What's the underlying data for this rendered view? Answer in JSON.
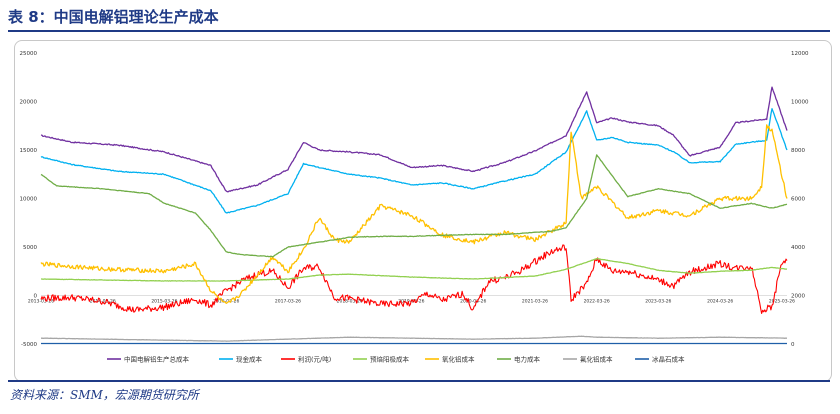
{
  "title": "表 8：中国电解铝理论生产成本",
  "source": "资料来源：SMM，宏源期货研究所",
  "chart_data": {
    "type": "line",
    "x_ticks": [
      "2013-03-26",
      "2014-03-26",
      "2015-03-26",
      "2016-03-26",
      "2017-03-26",
      "2018-03-26",
      "2019-03-26",
      "2020-03-26",
      "2021-03-26",
      "2022-03-26",
      "2023-03-26",
      "2024-03-26",
      "2025-03-26"
    ],
    "xlim": [
      "2013-03-26",
      "2025-04-25"
    ],
    "y_left": {
      "ylim": [
        -5000,
        25000
      ],
      "ticks": [
        "-5000",
        "0",
        "5000",
        "10000",
        "15000",
        "20000",
        "25000"
      ]
    },
    "y_right": {
      "ylim": [
        0,
        12000
      ],
      "ticks": [
        "0",
        "2000",
        "4000",
        "6000",
        "8000",
        "10000",
        "12000"
      ]
    },
    "grid": false,
    "legend_position": "bottom",
    "series": [
      {
        "name": "中国电解铝生产总成本",
        "color": "#7030a0",
        "axis": "left",
        "x": [
          "2013-03-26",
          "2013-09-26",
          "2014-06-26",
          "2015-03-26",
          "2015-12-26",
          "2016-03-26",
          "2016-09-26",
          "2017-03-26",
          "2017-06-26",
          "2017-09-26",
          "2018-03-26",
          "2018-09-26",
          "2019-03-26",
          "2019-09-26",
          "2020-03-26",
          "2020-09-26",
          "2021-03-26",
          "2021-09-26",
          "2022-01-26",
          "2022-03-26",
          "2022-06-26",
          "2022-09-26",
          "2023-03-26",
          "2023-06-26",
          "2023-09-26",
          "2024-03-26",
          "2024-06-26",
          "2024-12-26",
          "2025-01-26",
          "2025-04-25"
        ],
        "y": [
          16500,
          15800,
          15500,
          14800,
          13400,
          10700,
          11400,
          13000,
          15800,
          15000,
          14800,
          14500,
          13200,
          13400,
          12800,
          13700,
          14900,
          16500,
          21000,
          17800,
          18300,
          17900,
          17500,
          16500,
          14400,
          15300,
          17800,
          18200,
          21500,
          17000
        ]
      },
      {
        "name": "现金成本",
        "color": "#00b0f0",
        "axis": "left",
        "x": [
          "2013-03-26",
          "2013-09-26",
          "2014-06-26",
          "2015-03-26",
          "2015-12-26",
          "2016-03-26",
          "2016-09-26",
          "2017-03-26",
          "2017-06-26",
          "2017-09-26",
          "2018-03-26",
          "2018-09-26",
          "2019-03-26",
          "2019-09-26",
          "2020-03-26",
          "2020-09-26",
          "2021-03-26",
          "2021-09-26",
          "2022-01-26",
          "2022-03-26",
          "2022-06-26",
          "2022-09-26",
          "2023-03-26",
          "2023-06-26",
          "2023-09-26",
          "2024-03-26",
          "2024-06-26",
          "2024-12-26",
          "2025-01-26",
          "2025-04-25"
        ],
        "y": [
          14300,
          13500,
          12800,
          12500,
          10800,
          8500,
          9300,
          10500,
          13600,
          13200,
          12500,
          12100,
          11400,
          11600,
          11000,
          11800,
          12500,
          14800,
          19000,
          16000,
          16300,
          15800,
          15500,
          14800,
          13700,
          13800,
          15600,
          16000,
          19300,
          15000
        ]
      },
      {
        "name": "利润(元/吨)",
        "color": "#ff0000",
        "axis": "left",
        "x": [
          "2013-03-26",
          "2013-09-26",
          "2014-03-26",
          "2014-09-26",
          "2015-03-26",
          "2015-09-26",
          "2015-12-26",
          "2016-03-26",
          "2016-06-26",
          "2016-09-26",
          "2016-12-26",
          "2017-03-26",
          "2017-06-26",
          "2017-09-26",
          "2017-12-26",
          "2018-03-26",
          "2018-09-26",
          "2019-03-26",
          "2019-06-26",
          "2019-09-26",
          "2020-01-26",
          "2020-03-26",
          "2020-06-26",
          "2020-09-26",
          "2020-12-26",
          "2021-03-26",
          "2021-06-26",
          "2021-09-26",
          "2021-10-26",
          "2021-11-26",
          "2022-01-26",
          "2022-03-26",
          "2022-06-26",
          "2022-09-26",
          "2023-03-26",
          "2023-06-26",
          "2023-09-26",
          "2024-03-26",
          "2024-06-26",
          "2024-09-26",
          "2024-11-26",
          "2025-01-26",
          "2025-03-26",
          "2025-04-25"
        ],
        "y": [
          -300,
          -200,
          -600,
          -1500,
          -1200,
          -400,
          -1000,
          500,
          1500,
          2200,
          2500,
          800,
          2800,
          3000,
          -200,
          -300,
          -900,
          -800,
          200,
          -500,
          200,
          -1500,
          1500,
          1800,
          2500,
          3500,
          4500,
          5000,
          -500,
          200,
          1200,
          3800,
          2500,
          2500,
          1600,
          1000,
          2400,
          3300,
          2800,
          3000,
          -1500,
          -1200,
          3500,
          3600
        ]
      },
      {
        "name": "预焙阳极成本",
        "color": "#92d050",
        "axis": "left",
        "x": [
          "2013-03-26",
          "2014-03-26",
          "2015-03-26",
          "2016-03-26",
          "2017-03-26",
          "2017-09-26",
          "2018-03-26",
          "2019-03-26",
          "2020-03-26",
          "2021-03-26",
          "2021-09-26",
          "2022-03-26",
          "2022-09-26",
          "2023-03-26",
          "2023-09-26",
          "2024-03-26",
          "2024-09-26",
          "2025-01-26",
          "2025-04-25"
        ],
        "y": [
          1700,
          1600,
          1500,
          1500,
          1700,
          2100,
          2200,
          1900,
          1700,
          2000,
          2700,
          3800,
          3300,
          2600,
          2300,
          2500,
          2600,
          2900,
          2700
        ]
      },
      {
        "name": "氧化铝成本",
        "color": "#ffc000",
        "axis": "right",
        "x": [
          "2013-03-26",
          "2014-03-26",
          "2015-03-26",
          "2015-09-26",
          "2015-12-26",
          "2016-03-26",
          "2016-06-26",
          "2016-12-26",
          "2017-03-26",
          "2017-06-26",
          "2017-09-26",
          "2017-12-26",
          "2018-03-26",
          "2018-09-26",
          "2019-03-26",
          "2019-09-26",
          "2020-03-26",
          "2020-09-26",
          "2021-03-26",
          "2021-09-26",
          "2021-10-26",
          "2021-12-26",
          "2022-03-26",
          "2022-09-26",
          "2023-03-26",
          "2023-09-26",
          "2024-03-26",
          "2024-09-26",
          "2024-11-26",
          "2024-12-26",
          "2025-01-26",
          "2025-04-25"
        ],
        "y": [
          3300,
          3100,
          3000,
          3300,
          2200,
          1600,
          2100,
          3600,
          3000,
          3900,
          5200,
          4300,
          4200,
          5700,
          5300,
          4500,
          4200,
          4600,
          4300,
          5000,
          8800,
          6000,
          6500,
          5200,
          5500,
          5300,
          6000,
          6000,
          6500,
          9000,
          8800,
          6000
        ]
      },
      {
        "name": "电力成本",
        "color": "#70ad47",
        "axis": "left",
        "x": [
          "2013-03-26",
          "2013-06-26",
          "2014-03-26",
          "2014-12-26",
          "2015-03-26",
          "2015-09-26",
          "2015-12-26",
          "2016-03-26",
          "2016-06-26",
          "2016-12-26",
          "2017-03-26",
          "2017-09-26",
          "2018-03-26",
          "2018-09-26",
          "2019-03-26",
          "2019-09-26",
          "2020-03-26",
          "2020-09-26",
          "2021-03-26",
          "2021-06-26",
          "2021-09-26",
          "2022-01-26",
          "2022-03-26",
          "2022-09-26",
          "2023-03-26",
          "2023-09-26",
          "2024-03-26",
          "2024-09-26",
          "2025-01-26",
          "2025-04-25"
        ],
        "y": [
          12500,
          11300,
          11000,
          10500,
          9500,
          8500,
          6700,
          4500,
          4200,
          4000,
          5000,
          5500,
          6000,
          6100,
          6100,
          6200,
          6300,
          6300,
          6500,
          6600,
          7000,
          10000,
          14500,
          10200,
          11000,
          10500,
          9000,
          9500,
          9000,
          9400
        ]
      },
      {
        "name": "氟化铝成本",
        "color": "#a6a6a6",
        "axis": "left",
        "x": [
          "2013-03-26",
          "2014-03-26",
          "2015-03-26",
          "2016-03-26",
          "2017-03-26",
          "2018-03-26",
          "2019-03-26",
          "2020-03-26",
          "2021-03-26",
          "2021-12-26",
          "2022-03-26",
          "2023-03-26",
          "2024-03-26",
          "2025-04-25"
        ],
        "y": [
          -4400,
          -4500,
          -4600,
          -4700,
          -4500,
          -4300,
          -4400,
          -4500,
          -4400,
          -4200,
          -4300,
          -4400,
          -4300,
          -4400
        ]
      },
      {
        "name": "冰晶石成本",
        "color": "#1f5fa8",
        "axis": "left",
        "x": [
          "2013-03-26",
          "2025-04-25"
        ],
        "y": [
          -4950,
          -4950
        ]
      }
    ]
  }
}
